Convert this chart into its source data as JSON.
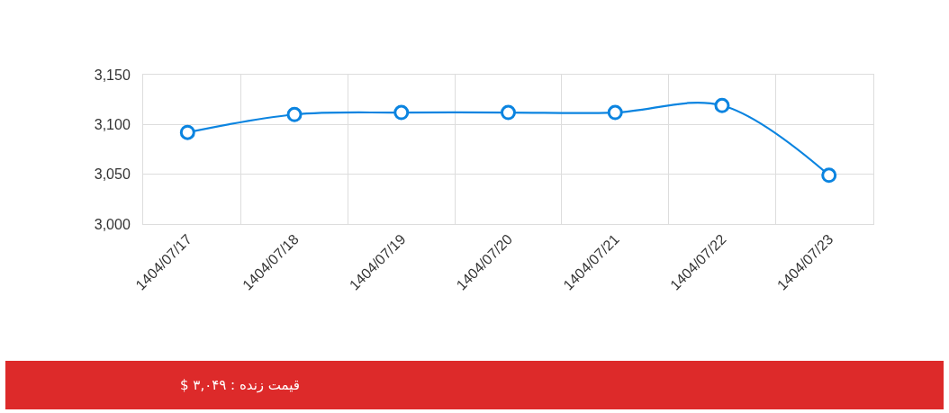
{
  "chart_data": {
    "type": "line",
    "categories": [
      "1404/07/17",
      "1404/07/18",
      "1404/07/19",
      "1404/07/20",
      "1404/07/21",
      "1404/07/22",
      "1404/07/23"
    ],
    "values": [
      3092,
      3110,
      3112,
      3112,
      3112,
      3119,
      3049
    ],
    "color": "#0b84e0",
    "ylim": [
      3000,
      3150
    ],
    "yticks": [
      {
        "value": 3000,
        "label": "3,000"
      },
      {
        "value": 3050,
        "label": "3,050"
      },
      {
        "value": 3100,
        "label": "3,100"
      },
      {
        "value": 3150,
        "label": "3,150"
      }
    ],
    "grid": true,
    "marker": "circle",
    "line_style": "solid",
    "annotations": [
      "قیمت زنده : ۳,۰۴۹ $"
    ]
  }
}
